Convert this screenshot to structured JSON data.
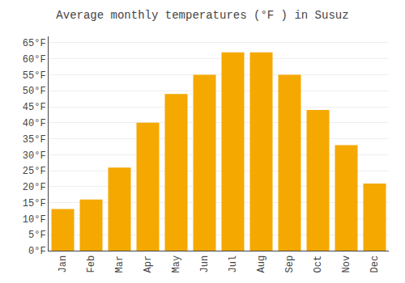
{
  "chart_data": {
    "type": "bar",
    "title": "Average monthly temperatures (°F ) in Susuz",
    "categories": [
      "Jan",
      "Feb",
      "Mar",
      "Apr",
      "May",
      "Jun",
      "Jul",
      "Aug",
      "Sep",
      "Oct",
      "Nov",
      "Dec"
    ],
    "values": [
      13,
      16,
      26,
      40,
      49,
      55,
      62,
      62,
      55,
      44,
      33,
      21
    ],
    "color": "#F5A800",
    "ylim": [
      0,
      67
    ],
    "yticks": [
      {
        "value": 0,
        "label": "0°F"
      },
      {
        "value": 5,
        "label": "5°F"
      },
      {
        "value": 10,
        "label": "10°F"
      },
      {
        "value": 15,
        "label": "15°F"
      },
      {
        "value": 20,
        "label": "20°F"
      },
      {
        "value": 25,
        "label": "25°F"
      },
      {
        "value": 30,
        "label": "30°F"
      },
      {
        "value": 35,
        "label": "35°F"
      },
      {
        "value": 40,
        "label": "40°F"
      },
      {
        "value": 45,
        "label": "45°F"
      },
      {
        "value": 50,
        "label": "50°F"
      },
      {
        "value": 55,
        "label": "55°F"
      },
      {
        "value": 60,
        "label": "60°F"
      },
      {
        "value": 65,
        "label": "65°F"
      }
    ],
    "grid": true
  }
}
